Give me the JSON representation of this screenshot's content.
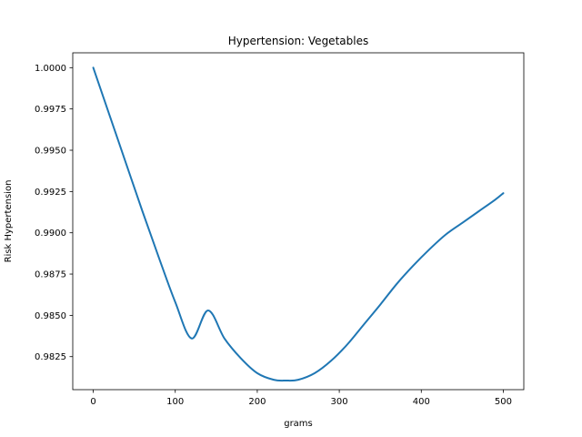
{
  "chart_data": {
    "type": "line",
    "title": "Hypertension: Vegetables",
    "xlabel": "grams",
    "ylabel": "Risk Hypertension",
    "xlim": [
      -25,
      525
    ],
    "ylim": [
      0.9805,
      1.0009
    ],
    "xticks": [
      0,
      100,
      200,
      300,
      400,
      500
    ],
    "xtick_labels": [
      "0",
      "100",
      "200",
      "300",
      "400",
      "500"
    ],
    "yticks": [
      0.9825,
      0.985,
      0.9875,
      0.99,
      0.9925,
      0.995,
      0.9975,
      1.0
    ],
    "ytick_labels": [
      "0.9825",
      "0.9850",
      "0.9875",
      "0.9900",
      "0.9925",
      "0.9950",
      "0.9975",
      "1.0000"
    ],
    "grid": false,
    "series": [
      {
        "color": "#1f77b4",
        "x": [
          0,
          20,
          40,
          60,
          80,
          100,
          120,
          140,
          160,
          180,
          200,
          220,
          235,
          250,
          270,
          290,
          310,
          330,
          350,
          370,
          390,
          410,
          430,
          450,
          470,
          490,
          500
        ],
        "y": [
          1.0,
          0.9971,
          0.9942,
          0.9913,
          0.9885,
          0.9858,
          0.9836,
          0.9853,
          0.9836,
          0.9824,
          0.9815,
          0.9811,
          0.98105,
          0.9811,
          0.9815,
          0.98225,
          0.98325,
          0.98445,
          0.98565,
          0.9869,
          0.988,
          0.989,
          0.9899,
          0.9906,
          0.9913,
          0.992,
          0.9924
        ]
      }
    ]
  }
}
